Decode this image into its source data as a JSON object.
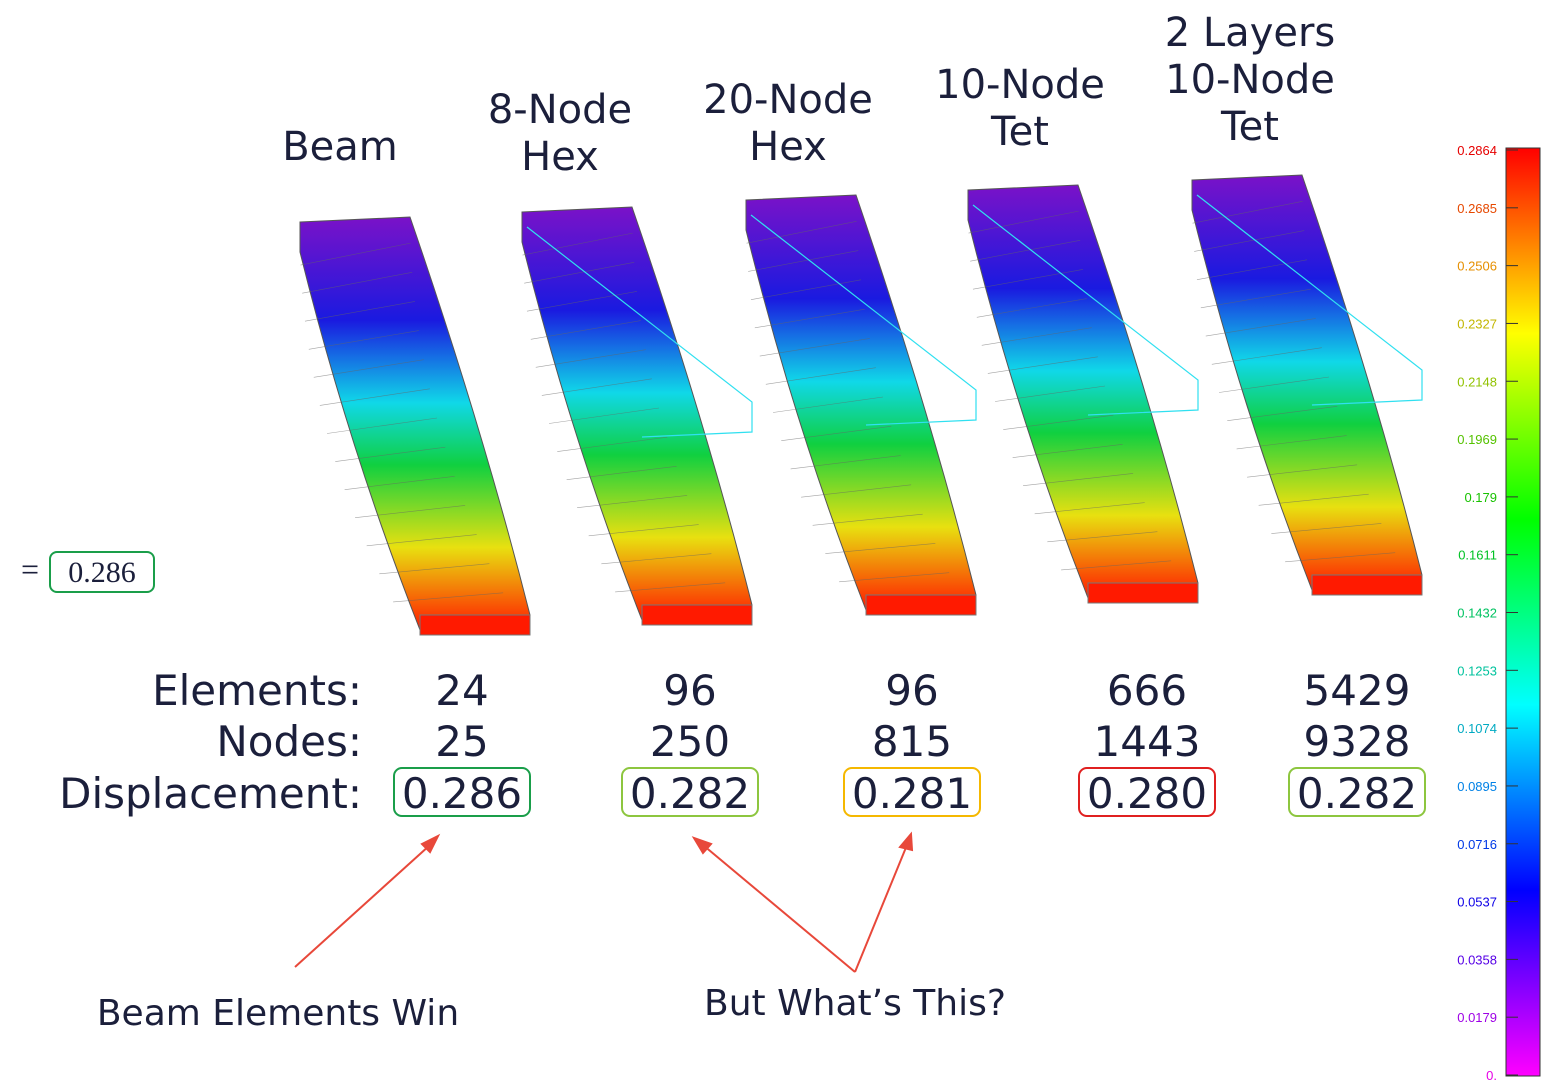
{
  "columns": [
    {
      "title": [
        "Beam"
      ],
      "elements": "24",
      "nodes": "25",
      "displacement": "0.286"
    },
    {
      "title": [
        "8-Node",
        "Hex"
      ],
      "elements": "96",
      "nodes": "250",
      "displacement": "0.282"
    },
    {
      "title": [
        "20-Node",
        "Hex"
      ],
      "elements": "96",
      "nodes": "815",
      "displacement": "0.281"
    },
    {
      "title": [
        "10-Node",
        "Tet"
      ],
      "elements": "666",
      "nodes": "1443",
      "displacement": "0.280"
    },
    {
      "title": [
        "2 Layers",
        "10-Node",
        "Tet"
      ],
      "elements": "5429",
      "nodes": "9328",
      "displacement": "0.282"
    }
  ],
  "row_labels": {
    "elements": "Elements:",
    "nodes": "Nodes:",
    "displacement": "Displacement:"
  },
  "formula": {
    "symbol": "=",
    "value": "0.286"
  },
  "annotations": [
    "Beam Elements Win",
    "But What’s This?"
  ],
  "legend": [
    "0.2864",
    "0.2685",
    "0.2506",
    "0.2327",
    "0.2148",
    "0.1969",
    "0.179",
    "0.1611",
    "0.1432",
    "0.1253",
    "0.1074",
    "0.0895",
    "0.0716",
    "0.0537",
    "0.0358",
    "0.0179",
    "0."
  ]
}
